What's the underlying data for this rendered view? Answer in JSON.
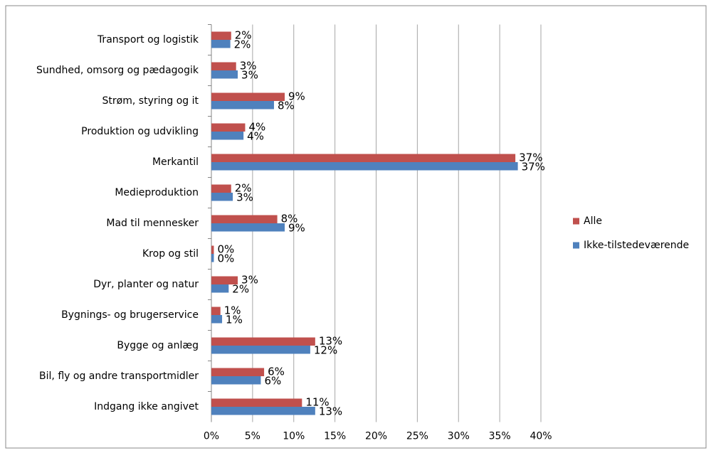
{
  "chart_data": {
    "type": "bar",
    "orientation": "horizontal",
    "categories": [
      "Transport og logistik",
      "Sundhed, omsorg og pædagogik",
      "Strøm, styring og it",
      "Produktion og udvikling",
      "Merkantil",
      "Medieproduktion",
      "Mad til mennesker",
      "Krop og stil",
      "Dyr, planter og natur",
      "Bygnings- og brugerservice",
      "Bygge og anlæg",
      "Bil, fly og andre transportmidler",
      "Indgang ikke angivet"
    ],
    "series": [
      {
        "name": "Alle",
        "color": "#c0504d",
        "values": [
          2.4,
          3.0,
          8.9,
          4.1,
          36.9,
          2.4,
          8.0,
          0.3,
          3.2,
          1.1,
          12.6,
          6.4,
          11.0
        ],
        "value_labels": [
          "2%",
          "3%",
          "9%",
          "4%",
          "37%",
          "2%",
          "8%",
          "0%",
          "3%",
          "1%",
          "13%",
          "6%",
          "11%"
        ]
      },
      {
        "name": "Ikke-tilstedeværende",
        "color": "#4f81bd",
        "values": [
          2.3,
          3.2,
          7.6,
          3.9,
          37.2,
          2.6,
          8.9,
          0.3,
          2.1,
          1.3,
          12.0,
          6.0,
          12.6
        ],
        "value_labels": [
          "2%",
          "3%",
          "8%",
          "4%",
          "37%",
          "3%",
          "9%",
          "0%",
          "2%",
          "1%",
          "12%",
          "6%",
          "13%"
        ]
      }
    ],
    "xlim": [
      0,
      40
    ],
    "xticks": [
      {
        "value": 0,
        "label": "0%"
      },
      {
        "value": 5,
        "label": "5%"
      },
      {
        "value": 10,
        "label": "10%"
      },
      {
        "value": 15,
        "label": "15%"
      },
      {
        "value": 20,
        "label": "20%"
      },
      {
        "value": 25,
        "label": "25%"
      },
      {
        "value": 30,
        "label": "30%"
      },
      {
        "value": 35,
        "label": "35%"
      },
      {
        "value": 40,
        "label": "40%"
      }
    ],
    "grid": true,
    "legend": "right"
  }
}
